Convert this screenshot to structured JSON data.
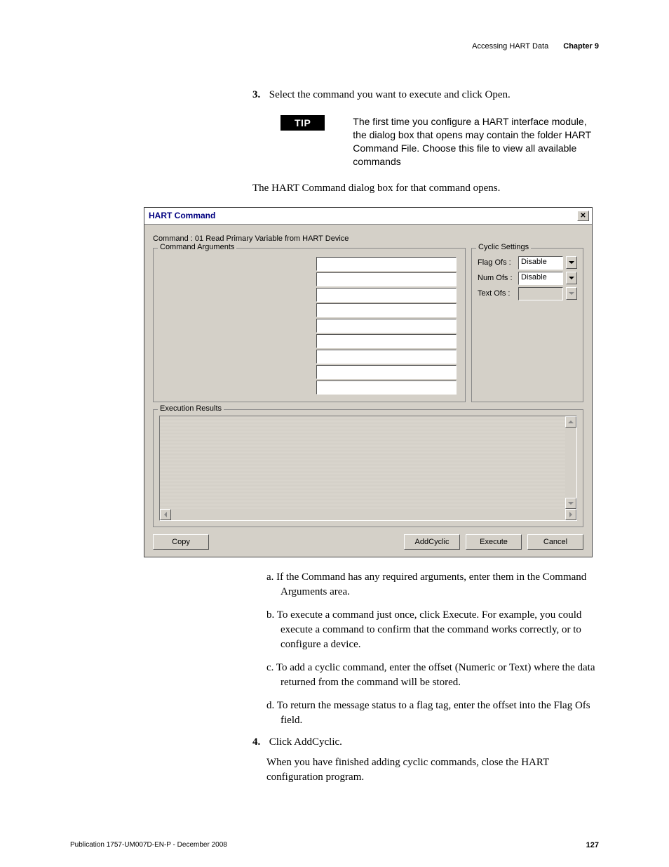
{
  "header": {
    "section": "Accessing HART Data",
    "chapter": "Chapter 9"
  },
  "step3": {
    "num": "3.",
    "text": "Select the command you want to execute and click Open."
  },
  "tip": {
    "label": "TIP",
    "text": "The first time you configure a HART interface module, the dialog box that opens may contain the folder HART Command File. Choose this file to view all available commands"
  },
  "intro_para": "The HART Command dialog box for that command opens.",
  "dialog": {
    "title": "HART Command",
    "command_line": "Command :  01 Read Primary Variable from HART Device",
    "args_legend": "Command Arguments",
    "cyclic_legend": "Cyclic Settings",
    "cyclic": {
      "flag_label": "Flag Ofs :",
      "flag_value": "Disable",
      "num_label": "Num Ofs :",
      "num_value": "Disable",
      "text_label": "Text Ofs :",
      "text_value": ""
    },
    "results_legend": "Execution Results",
    "buttons": {
      "copy": "Copy",
      "addcyclic": "AddCyclic",
      "execute": "Execute",
      "cancel": "Cancel"
    }
  },
  "subitems": {
    "a": "a. If the Command has any required arguments, enter them in the Command Arguments area.",
    "b": "b. To execute a command just once, click Execute. For example, you could execute a command to confirm that the command works correctly, or to configure a device.",
    "c": "c. To add a cyclic command, enter the offset (Numeric or Text) where the data returned from the command will be stored.",
    "d": "d. To return the message status to a flag tag, enter the offset into the Flag Ofs field."
  },
  "step4": {
    "num": "4.",
    "text": "Click AddCyclic.",
    "body": "When you have finished adding cyclic commands, close the HART configuration program."
  },
  "footer": {
    "pub": "Publication 1757-UM007D-EN-P - December 2008",
    "page": "127"
  }
}
